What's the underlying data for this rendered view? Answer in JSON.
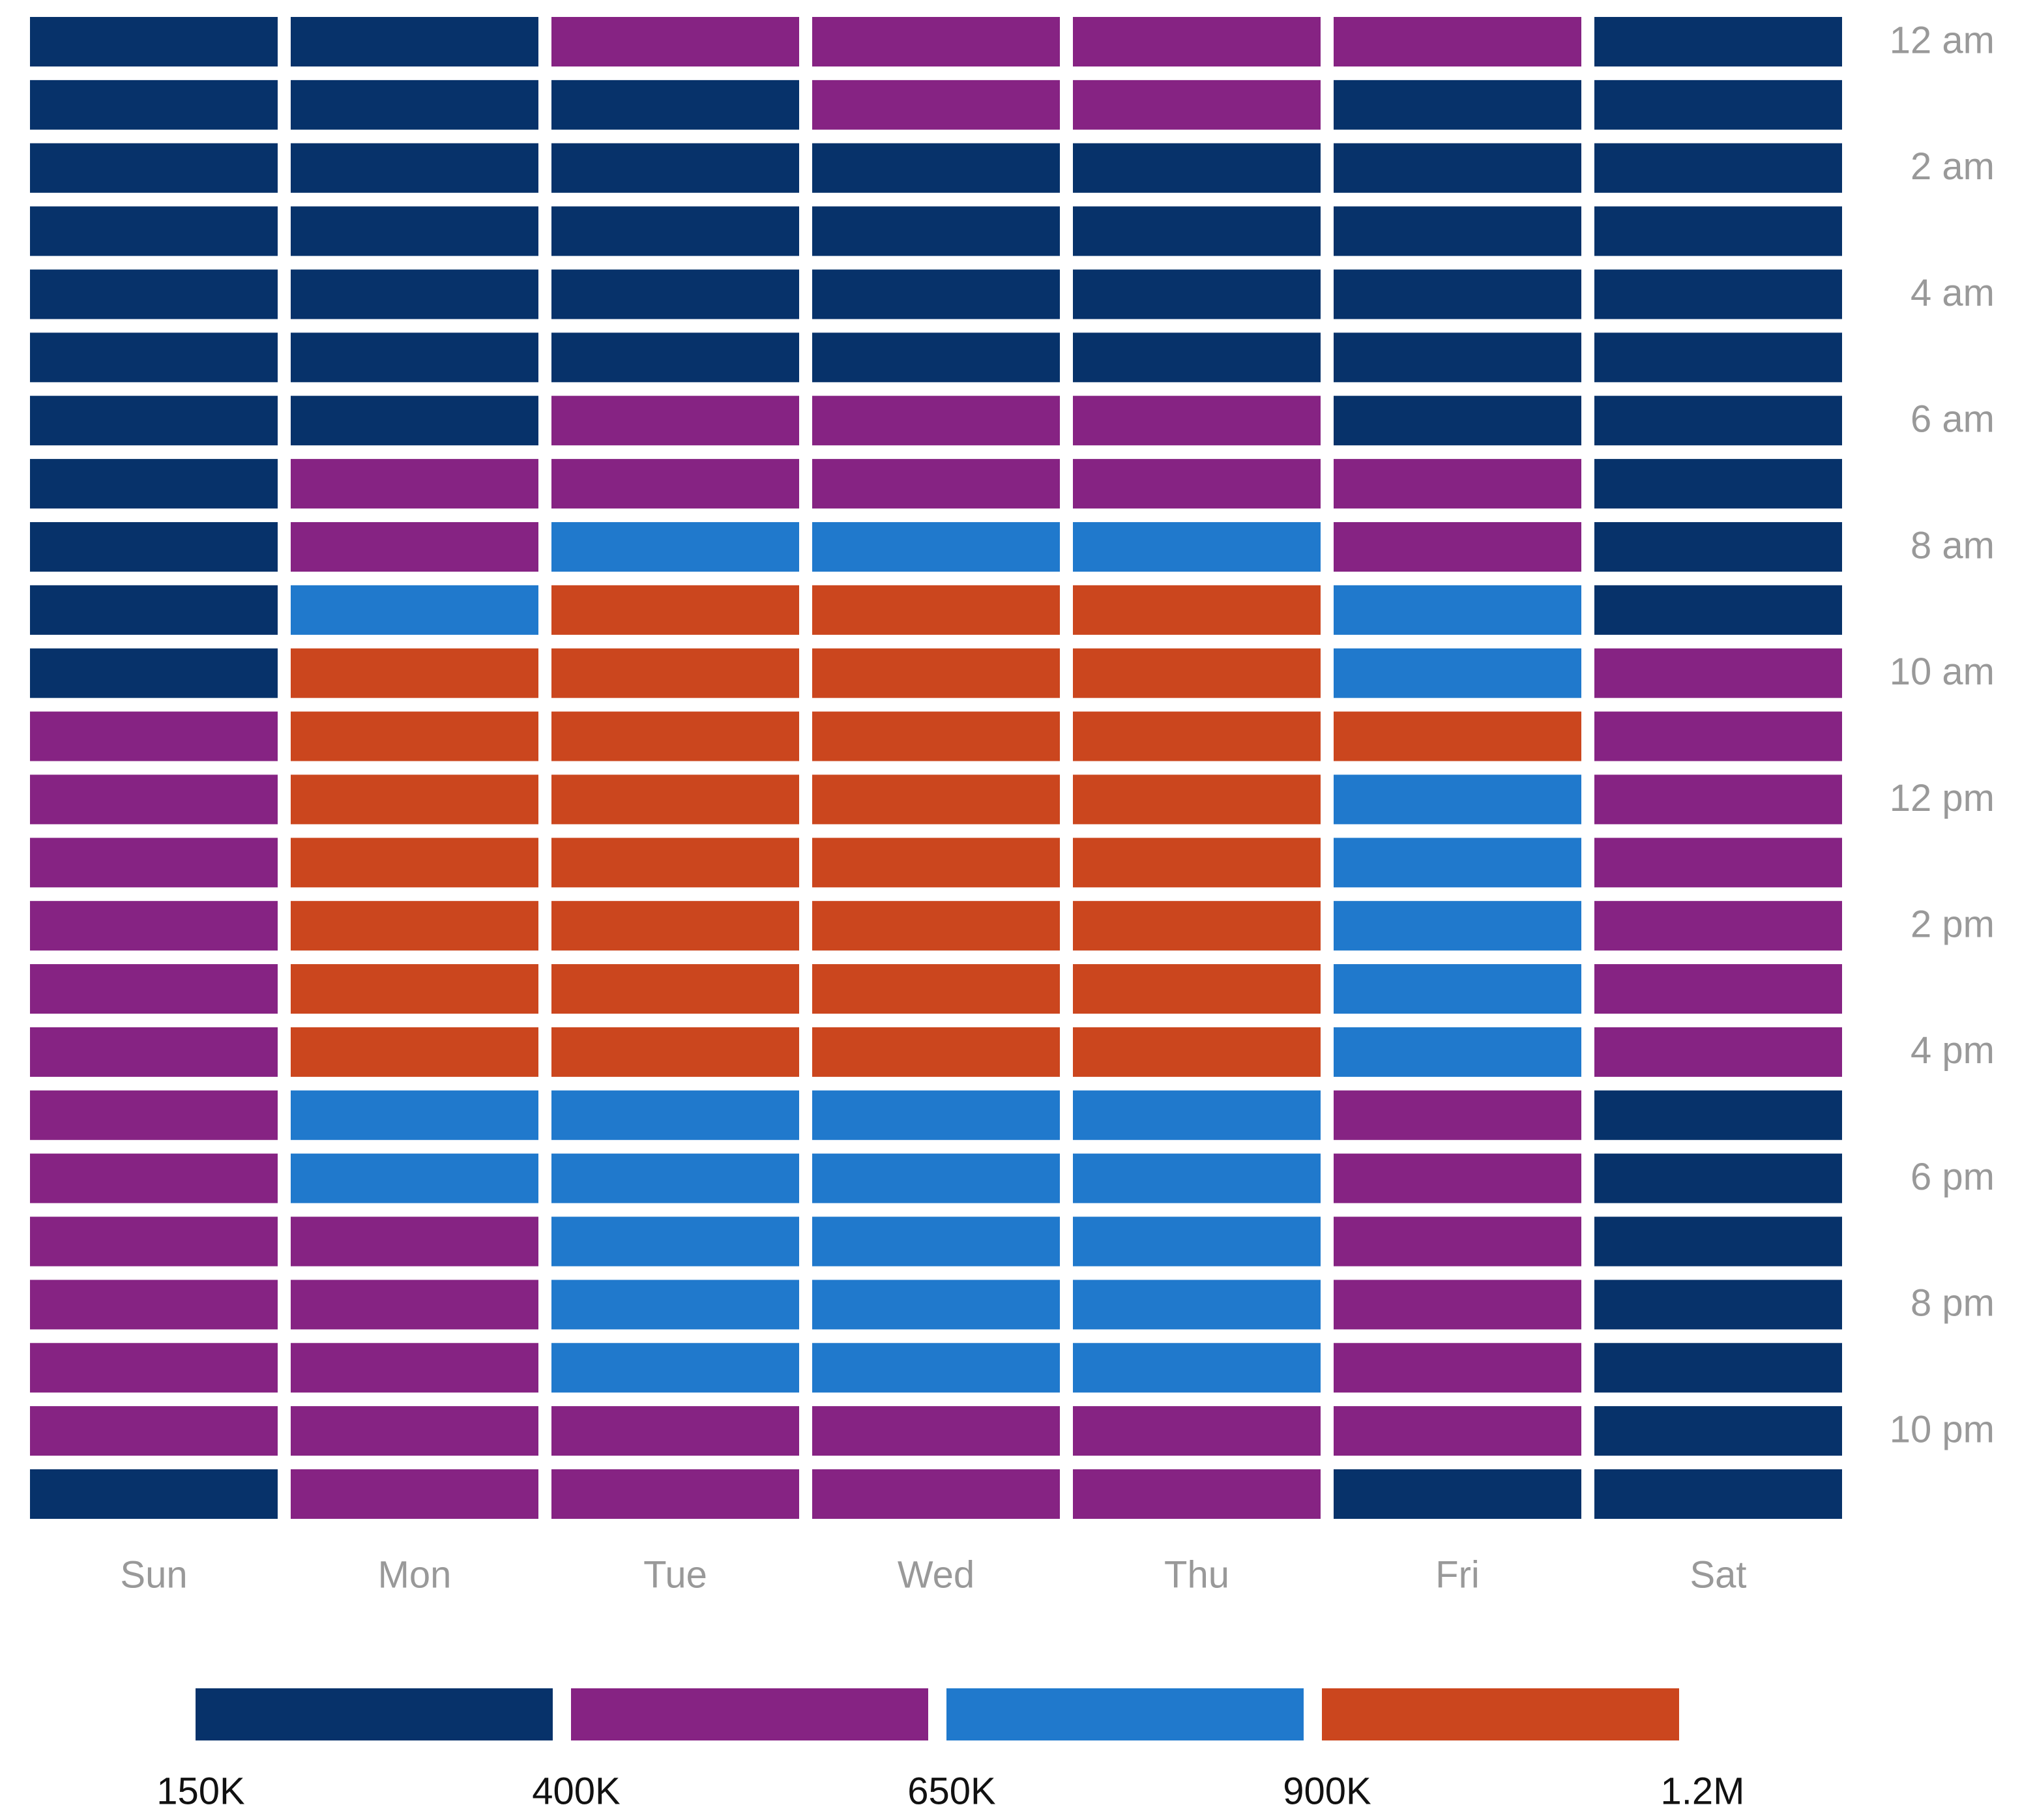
{
  "chart_data": {
    "type": "heatmap",
    "x_categories": [
      "Sun",
      "Mon",
      "Tue",
      "Wed",
      "Thu",
      "Fri",
      "Sat"
    ],
    "y_categories": [
      "12 am",
      null,
      "2 am",
      null,
      "4 am",
      null,
      "6 am",
      null,
      "8 am",
      null,
      "10 am",
      null,
      "12 pm",
      null,
      "2 pm",
      null,
      "4 pm",
      null,
      "6 pm",
      null,
      "8 pm",
      null,
      "10 pm",
      null
    ],
    "values": [
      [
        275000,
        275000,
        525000,
        525000,
        525000,
        525000,
        275000
      ],
      [
        275000,
        275000,
        275000,
        525000,
        525000,
        275000,
        275000
      ],
      [
        275000,
        275000,
        275000,
        275000,
        275000,
        275000,
        275000
      ],
      [
        275000,
        275000,
        275000,
        275000,
        275000,
        275000,
        275000
      ],
      [
        275000,
        275000,
        275000,
        275000,
        275000,
        275000,
        275000
      ],
      [
        275000,
        275000,
        275000,
        275000,
        275000,
        275000,
        275000
      ],
      [
        275000,
        275000,
        525000,
        525000,
        525000,
        275000,
        275000
      ],
      [
        275000,
        525000,
        525000,
        525000,
        525000,
        525000,
        275000
      ],
      [
        275000,
        525000,
        775000,
        775000,
        775000,
        525000,
        275000
      ],
      [
        275000,
        775000,
        1050000,
        1050000,
        1050000,
        775000,
        275000
      ],
      [
        275000,
        1050000,
        1050000,
        1050000,
        1050000,
        775000,
        525000
      ],
      [
        525000,
        1050000,
        1050000,
        1050000,
        1050000,
        1050000,
        525000
      ],
      [
        525000,
        1050000,
        1050000,
        1050000,
        1050000,
        775000,
        525000
      ],
      [
        525000,
        1050000,
        1050000,
        1050000,
        1050000,
        775000,
        525000
      ],
      [
        525000,
        1050000,
        1050000,
        1050000,
        1050000,
        775000,
        525000
      ],
      [
        525000,
        1050000,
        1050000,
        1050000,
        1050000,
        775000,
        525000
      ],
      [
        525000,
        1050000,
        1050000,
        1050000,
        1050000,
        775000,
        525000
      ],
      [
        525000,
        775000,
        775000,
        775000,
        775000,
        525000,
        275000
      ],
      [
        525000,
        775000,
        775000,
        775000,
        775000,
        525000,
        275000
      ],
      [
        525000,
        525000,
        775000,
        775000,
        775000,
        525000,
        275000
      ],
      [
        525000,
        525000,
        775000,
        775000,
        775000,
        525000,
        275000
      ],
      [
        525000,
        525000,
        775000,
        775000,
        775000,
        525000,
        275000
      ],
      [
        525000,
        525000,
        525000,
        525000,
        525000,
        525000,
        275000
      ],
      [
        275000,
        525000,
        525000,
        525000,
        525000,
        275000,
        275000
      ]
    ],
    "colorscale": {
      "ticks": [
        {
          "value": 150000,
          "label": "150K"
        },
        {
          "value": 400000,
          "label": "400K"
        },
        {
          "value": 650000,
          "label": "650K"
        },
        {
          "value": 900000,
          "label": "900K"
        },
        {
          "value": 1200000,
          "label": "1.2M"
        }
      ],
      "colors": [
        "#07326a",
        "#862383",
        "#2079cc",
        "#cb461e"
      ]
    }
  }
}
